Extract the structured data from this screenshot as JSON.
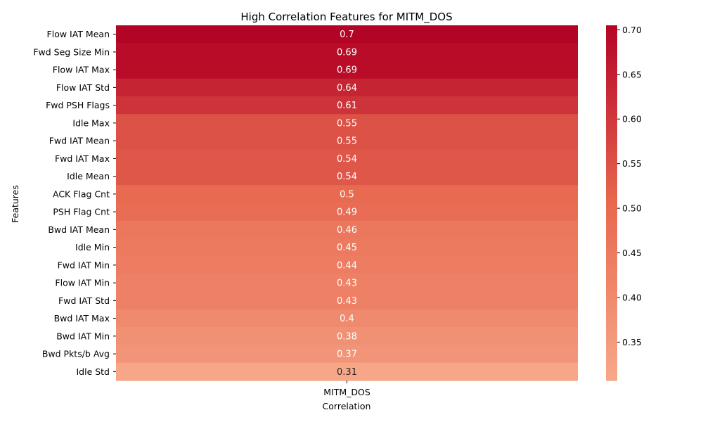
{
  "chart_data": {
    "type": "heatmap",
    "title": "High Correlation Features for MITM_DOS",
    "xlabel": "Correlation",
    "ylabel": "Features",
    "columns": [
      "MITM_DOS"
    ],
    "rows": [
      "Flow IAT Mean",
      "Fwd Seg Size Min",
      "Flow IAT Max",
      "Flow IAT Std",
      "Fwd PSH Flags",
      "Idle Max",
      "Fwd IAT Mean",
      "Fwd IAT Max",
      "Idle Mean",
      "ACK Flag Cnt",
      "PSH Flag Cnt",
      "Bwd IAT Mean",
      "Idle Min",
      "Fwd IAT Min",
      "Flow IAT Min",
      "Fwd IAT Std",
      "Bwd IAT Max",
      "Bwd IAT Min",
      "Bwd Pkts/b Avg",
      "Idle Std"
    ],
    "values": [
      0.705,
      0.69,
      0.69,
      0.64,
      0.61,
      0.55,
      0.55,
      0.54,
      0.54,
      0.5,
      0.49,
      0.46,
      0.45,
      0.44,
      0.43,
      0.43,
      0.4,
      0.38,
      0.37,
      0.31
    ],
    "annotations": [
      "0.7",
      "0.69",
      "0.69",
      "0.64",
      "0.61",
      "0.55",
      "0.55",
      "0.54",
      "0.54",
      "0.5",
      "0.49",
      "0.46",
      "0.45",
      "0.44",
      "0.43",
      "0.43",
      "0.4",
      "0.38",
      "0.37",
      "0.31"
    ],
    "colorbar": {
      "range": [
        0.307,
        0.705
      ],
      "ticks": [
        0.35,
        0.4,
        0.45,
        0.5,
        0.55,
        0.6,
        0.65,
        0.7
      ],
      "tick_labels": [
        "0.35",
        "0.40",
        "0.45",
        "0.50",
        "0.55",
        "0.60",
        "0.65",
        "0.70"
      ]
    },
    "colormap": [
      "#f7a889",
      "#e8684f",
      "#b40426"
    ]
  }
}
